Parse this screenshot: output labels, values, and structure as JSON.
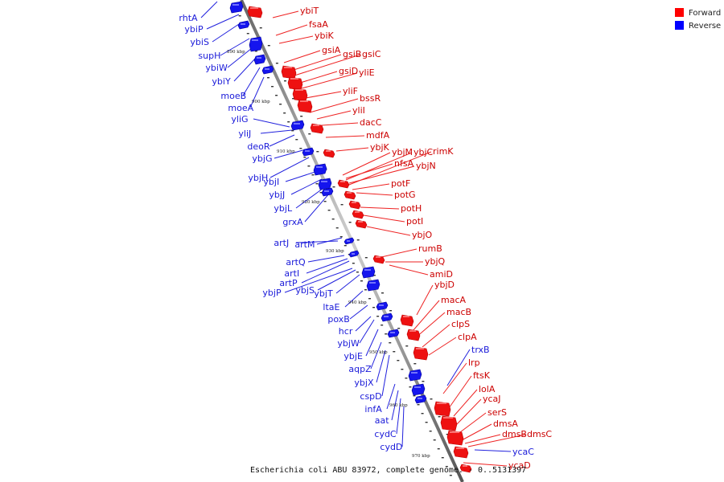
{
  "caption": "Escherichia coli ABU 83972, complete genome. - 0..5131397",
  "legend": {
    "forward_label": "Forward",
    "reverse_label": "Reverse",
    "forward_color": "#ff0000",
    "reverse_color": "#0000ff"
  },
  "ticks": [
    "890 kbp",
    "900 kbp",
    "910 kbp",
    "920 kbp",
    "930 kbp",
    "940 kbp",
    "950 kbp",
    "960 kbp",
    "970 kbp"
  ],
  "forward_genes": [
    "ybiT",
    "fsaA",
    "ybiK",
    "gsiA",
    "gsiB",
    "gsiC",
    "gsiD",
    "yliE",
    "yliF",
    "bssR",
    "yliI",
    "dacC",
    "mdfA",
    "ybjK",
    "ybjM",
    "ybjC",
    "rimK",
    "nfsA",
    "ybjN",
    "potF",
    "potG",
    "potH",
    "potI",
    "ybjO",
    "rumB",
    "ybjQ",
    "amiD",
    "ybjD",
    "macA",
    "macB",
    "clpS",
    "clpA",
    "lrp",
    "ftsK",
    "lolA",
    "ycaJ",
    "serS",
    "dmsA",
    "dmsB",
    "dmsC",
    "ycaD"
  ],
  "reverse_genes": [
    "rhtA",
    "ybiP",
    "ybiS",
    "supH",
    "ybiW",
    "ybiY",
    "moeB",
    "moeA",
    "yliG",
    "yliJ",
    "deoR",
    "ybjG",
    "ybjH",
    "ybjI",
    "ybjJ",
    "ybjL",
    "grxA",
    "artJ",
    "artM",
    "artQ",
    "artI",
    "artP",
    "ybjP",
    "ybjS",
    "ybjT",
    "ltaE",
    "poxB",
    "hcr",
    "ybjW",
    "ybjE",
    "aqpZ",
    "ybjX",
    "cspD",
    "infA",
    "aat",
    "cydC",
    "cydD",
    "trxB",
    "ycaC"
  ]
}
